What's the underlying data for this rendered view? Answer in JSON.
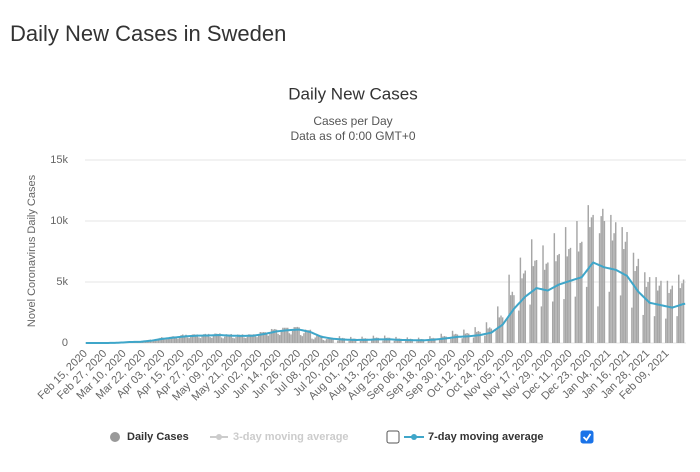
{
  "header": {
    "title": "Daily New Cases in Sweden"
  },
  "chart_data": {
    "type": "bar",
    "title": "Daily New Cases",
    "subtitle": [
      "Cases per Day",
      "Data as of 0:00 GMT+0"
    ],
    "ylabel": "Novel Coronavirus Daily Cases",
    "ylim": [
      0,
      15000
    ],
    "yticks": [
      0,
      {
        "value": 5000,
        "label": "5k"
      },
      {
        "value": 10000,
        "label": "10k"
      },
      {
        "value": 15000,
        "label": "15k"
      }
    ],
    "grid": true,
    "categories": [
      "Feb 15, 2020",
      null,
      null,
      null,
      null,
      null,
      null,
      null,
      null,
      null,
      null,
      null,
      "Feb 27, 2020",
      null,
      null,
      null,
      null,
      null,
      null,
      null,
      null,
      null,
      null,
      null,
      "Mar 10, 2020",
      null,
      null,
      null,
      null,
      null,
      null,
      null,
      null,
      null,
      null,
      null,
      "Mar 22, 2020",
      null,
      null,
      null,
      null,
      null,
      null,
      null,
      null,
      null,
      null,
      null,
      "Apr 03, 2020",
      null,
      null,
      null,
      null,
      null,
      null,
      null,
      null,
      null,
      null,
      null,
      "Apr 15, 2020",
      null,
      null,
      null,
      null,
      null,
      null,
      null,
      null,
      null,
      null,
      null,
      "Apr 27, 2020",
      null,
      null,
      null,
      null,
      null,
      null,
      null,
      null,
      null,
      null,
      null,
      "May 09, 2020",
      null,
      null,
      null,
      null,
      null,
      null,
      null,
      null,
      null,
      null,
      null,
      "May 21, 2020",
      null,
      null,
      null,
      null,
      null,
      null,
      null,
      null,
      null,
      null,
      null,
      "Jun 02, 2020",
      null,
      null,
      null,
      null,
      null,
      null,
      null,
      null,
      null,
      null,
      null,
      "Jun 14, 2020",
      null,
      null,
      null,
      null,
      null,
      null,
      null,
      null,
      null,
      null,
      null,
      "Jun 26, 2020",
      null,
      null,
      null,
      null,
      null,
      null,
      null,
      null,
      null,
      null,
      null,
      "Jul 08, 2020",
      null,
      null,
      null,
      null,
      null,
      null,
      null,
      null,
      null,
      null,
      null,
      "Jul 20, 2020",
      null,
      null,
      null,
      null,
      null,
      null,
      null,
      null,
      null,
      null,
      null,
      "Aug 01, 2020",
      null,
      null,
      null,
      null,
      null,
      null,
      null,
      null,
      null,
      null,
      null,
      "Aug 13, 2020",
      null,
      null,
      null,
      null,
      null,
      null,
      null,
      null,
      null,
      null,
      null,
      "Aug 25, 2020",
      null,
      null,
      null,
      null,
      null,
      null,
      null,
      null,
      null,
      null,
      null,
      "Sep 06, 2020",
      null,
      null,
      null,
      null,
      null,
      null,
      null,
      null,
      null,
      null,
      null,
      "Sep 18, 2020",
      null,
      null,
      null,
      null,
      null,
      null,
      null,
      null,
      null,
      null,
      null,
      "Sep 30, 2020",
      null,
      null,
      null,
      null,
      null,
      null,
      null,
      null,
      null,
      null,
      null,
      "Oct 12, 2020",
      null,
      null,
      null,
      null,
      null,
      null,
      null,
      null,
      null,
      null,
      null,
      "Oct 24, 2020",
      null,
      null,
      null,
      null,
      null,
      null,
      null,
      null,
      null,
      null,
      null,
      "Nov 05, 2020",
      null,
      null,
      null,
      null,
      null,
      null,
      null,
      null,
      null,
      null,
      null,
      "Nov 17, 2020",
      null,
      null,
      null,
      null,
      null,
      null,
      null,
      null,
      null,
      null,
      null,
      "Nov 29, 2020",
      null,
      null,
      null,
      null,
      null,
      null,
      null,
      null,
      null,
      null,
      null,
      "Dec 11, 2020",
      null,
      null,
      null,
      null,
      null,
      null,
      null,
      null,
      null,
      null,
      null,
      "Dec 23, 2020",
      null,
      null,
      null,
      null,
      null,
      null,
      null,
      null,
      null,
      null,
      null,
      "Jan 04, 2021",
      null,
      null,
      null,
      null,
      null,
      null,
      null,
      null,
      null,
      null,
      null,
      "Jan 16, 2021",
      null,
      null,
      null,
      null,
      null,
      null,
      null,
      null,
      null,
      null,
      null,
      "Jan 28, 2021",
      null,
      null,
      null,
      null,
      null,
      null,
      null,
      null,
      null,
      null,
      null,
      "Feb 09, 2021",
      null,
      null,
      null,
      null,
      null,
      null,
      null,
      null,
      null,
      null,
      null
    ],
    "series": [
      {
        "name": "Daily Cases",
        "type": "bar",
        "color": "#a6a6a6",
        "legend_marker": "circle",
        "legend_marker_color": "#999999",
        "values": [
          0,
          0,
          0,
          0,
          0,
          0,
          0,
          0,
          0,
          0,
          0,
          1,
          0,
          1,
          5,
          6,
          10,
          15,
          24,
          30,
          50,
          60,
          40,
          70,
          90,
          100,
          110,
          90,
          70,
          60,
          80,
          100,
          110,
          140,
          140,
          120,
          110,
          170,
          230,
          250,
          280,
          240,
          250,
          200,
          300,
          380,
          420,
          480,
          420,
          350,
          300,
          380,
          500,
          520,
          560,
          540,
          400,
          350,
          450,
          650,
          700,
          620,
          680,
          450,
          400,
          550,
          700,
          720,
          680,
          700,
          460,
          400,
          560,
          720,
          750,
          700,
          750,
          480,
          420,
          580,
          780,
          760,
          740,
          790,
          450,
          380,
          520,
          720,
          700,
          690,
          740,
          430,
          380,
          500,
          700,
          680,
          660,
          710,
          450,
          400,
          520,
          720,
          700,
          690,
          720,
          550,
          480,
          650,
          900,
          880,
          900,
          890,
          700,
          600,
          850,
          1150,
          1100,
          1150,
          1100,
          750,
          650,
          950,
          1250,
          1250,
          1250,
          1250,
          800,
          700,
          1000,
          1300,
          1300,
          1320,
          1280,
          650,
          560,
          800,
          1100,
          1050,
          1050,
          1090,
          360,
          300,
          450,
          600,
          580,
          600,
          610,
          250,
          200,
          320,
          420,
          420,
          420,
          420,
          0,
          0,
          200,
          560,
          390,
          420,
          390,
          0,
          0,
          180,
          500,
          350,
          370,
          350,
          0,
          0,
          180,
          520,
          370,
          390,
          360,
          0,
          0,
          210,
          600,
          420,
          450,
          420,
          0,
          0,
          200,
          610,
          420,
          440,
          430,
          0,
          0,
          180,
          500,
          350,
          370,
          350,
          0,
          0,
          160,
          460,
          320,
          350,
          320,
          0,
          0,
          150,
          440,
          310,
          330,
          310,
          0,
          0,
          200,
          560,
          390,
          420,
          390,
          0,
          0,
          270,
          760,
          530,
          570,
          530,
          0,
          0,
          350,
          1000,
          700,
          750,
          700,
          0,
          0,
          390,
          1100,
          770,
          820,
          770,
          0,
          0,
          450,
          1300,
          910,
          980,
          910,
          0,
          0,
          600,
          1700,
          1190,
          1280,
          1180,
          0,
          0,
          1050,
          3000,
          2100,
          2250,
          2100,
          0,
          0,
          1960,
          5600,
          3920,
          4200,
          3920,
          0,
          0,
          2660,
          7000,
          5300,
          5700,
          5940,
          0,
          0,
          3150,
          8500,
          6300,
          6750,
          6800,
          0,
          0,
          3000,
          8000,
          6000,
          6500,
          6600,
          0,
          0,
          3400,
          9000,
          6700,
          7200,
          7300,
          0,
          0,
          3600,
          9500,
          7100,
          7700,
          7800,
          0,
          0,
          3800,
          10000,
          7500,
          8200,
          8300,
          0,
          0,
          4600,
          11300,
          9500,
          10300,
          10500,
          0,
          0,
          3000,
          9000,
          10400,
          11000,
          10000,
          0,
          0,
          4200,
          10500,
          8400,
          9000,
          9900,
          0,
          0,
          3900,
          9500,
          7700,
          8300,
          9100,
          0,
          0,
          2900,
          7400,
          5900,
          6300,
          6900,
          0,
          0,
          2300,
          5800,
          4600,
          5000,
          5400,
          0,
          0,
          2200,
          5400,
          4300,
          4700,
          5100,
          0,
          0,
          2000,
          5100,
          4100,
          4400,
          4700,
          0,
          0,
          2200,
          5600,
          4500,
          4900,
          5200,
          0
        ]
      },
      {
        "name": "7-day moving average",
        "type": "line",
        "color": "#3fa6c9",
        "checked": true,
        "values": [
          1,
          1,
          1,
          1,
          1,
          1,
          1,
          1,
          1,
          1,
          1,
          1,
          1,
          1,
          3,
          6,
          9,
          12,
          15,
          18,
          20,
          29,
          37,
          46,
          54,
          63,
          71,
          80,
          83,
          86,
          89,
          91,
          94,
          97,
          100,
          114,
          129,
          143,
          157,
          171,
          186,
          200,
          221,
          243,
          264,
          286,
          307,
          329,
          350,
          364,
          379,
          393,
          407,
          421,
          436,
          450,
          464,
          479,
          493,
          507,
          521,
          536,
          550,
          557,
          564,
          571,
          579,
          586,
          593,
          600,
          603,
          606,
          609,
          611,
          614,
          617,
          620,
          624,
          629,
          633,
          637,
          641,
          646,
          650,
          643,
          636,
          629,
          621,
          614,
          607,
          600,
          597,
          594,
          591,
          589,
          586,
          583,
          580,
          583,
          586,
          589,
          591,
          594,
          597,
          600,
          621,
          643,
          664,
          686,
          707,
          729,
          750,
          779,
          807,
          836,
          864,
          893,
          921,
          950,
          964,
          979,
          993,
          1007,
          1021,
          1036,
          1050,
          1057,
          1064,
          1071,
          1079,
          1086,
          1093,
          1100,
          1071,
          1043,
          1014,
          986,
          957,
          929,
          900,
          843,
          786,
          729,
          671,
          614,
          557,
          500,
          479,
          457,
          436,
          414,
          393,
          371,
          350,
          340,
          330,
          320,
          310,
          300,
          290,
          280,
          276,
          271,
          267,
          263,
          259,
          254,
          250,
          251,
          253,
          254,
          256,
          257,
          259,
          260,
          266,
          271,
          277,
          283,
          289,
          294,
          300,
          300,
          300,
          300,
          300,
          300,
          300,
          300,
          293,
          286,
          279,
          271,
          264,
          257,
          250,
          247,
          244,
          241,
          239,
          236,
          233,
          230,
          229,
          227,
          226,
          224,
          223,
          221,
          220,
          229,
          237,
          246,
          254,
          263,
          271,
          280,
          294,
          309,
          323,
          337,
          351,
          366,
          380,
          397,
          414,
          431,
          449,
          466,
          483,
          500,
          507,
          514,
          521,
          529,
          536,
          543,
          550,
          564,
          579,
          593,
          607,
          621,
          636,
          650,
          679,
          707,
          736,
          764,
          793,
          821,
          850,
          943,
          1036,
          1129,
          1221,
          1314,
          1407,
          1500,
          1686,
          1871,
          2057,
          2243,
          2429,
          2614,
          2800,
          2943,
          3086,
          3229,
          3371,
          3514,
          3657,
          3800,
          3900,
          4000,
          4100,
          4200,
          4300,
          4400,
          4500,
          4471,
          4443,
          4414,
          4386,
          4357,
          4329,
          4300,
          4371,
          4443,
          4514,
          4586,
          4657,
          4729,
          4800,
          4843,
          4886,
          4929,
          4971,
          5014,
          5057,
          5100,
          5143,
          5186,
          5229,
          5271,
          5314,
          5357,
          5400,
          5571,
          5743,
          5914,
          6086,
          6257,
          6429,
          6600,
          6543,
          6486,
          6429,
          6371,
          6314,
          6257,
          6200,
          6171,
          6143,
          6114,
          6086,
          6057,
          6029,
          6000,
          5929,
          5857,
          5786,
          5714,
          5643,
          5571,
          5500,
          5314,
          5129,
          4943,
          4757,
          4571,
          4386,
          4200,
          4071,
          3943,
          3814,
          3686,
          3557,
          3429,
          3300,
          3271,
          3243,
          3214,
          3186,
          3157,
          3129,
          3100,
          3071,
          3043,
          3014,
          2986,
          2957,
          2929,
          2900,
          2943,
          2986,
          3029,
          3071,
          3114,
          3157,
          3200,
          3220
        ]
      }
    ],
    "hidden_series": [
      {
        "name": "3-day moving average",
        "color": "#cccccc",
        "checked": false
      }
    ]
  }
}
